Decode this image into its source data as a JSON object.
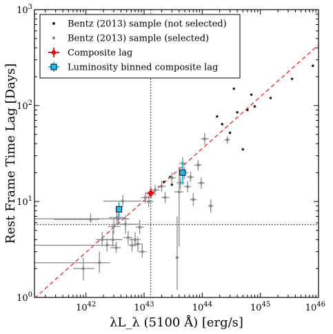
{
  "chart_data": {
    "type": "scatter",
    "xlabel": "λL_λ (5100 Å) [erg/s]",
    "ylabel": "Rest Frame Time Lag [Days]",
    "x_scale": "log",
    "y_scale": "log",
    "xlim": [
      1.3e+41,
      1e+46
    ],
    "ylim": [
      1,
      1000
    ],
    "x_tick_labels": [
      {
        "value": 1e+42,
        "base": "10",
        "exp": "42"
      },
      {
        "value": 1e+43,
        "base": "10",
        "exp": "43"
      },
      {
        "value": 1e+44,
        "base": "10",
        "exp": "44"
      },
      {
        "value": 1e+45,
        "base": "10",
        "exp": "45"
      },
      {
        "value": 1e+46,
        "base": "10",
        "exp": "46"
      }
    ],
    "y_tick_labels": [
      {
        "value": 1,
        "base": "10",
        "exp": "0"
      },
      {
        "value": 10,
        "base": "10",
        "exp": "1"
      },
      {
        "value": 100,
        "base": "10",
        "exp": "2"
      },
      {
        "value": 1000,
        "base": "10",
        "exp": "3"
      }
    ],
    "legend_position": "top-left",
    "colors": {
      "not_selected": "#222222",
      "selected": "#888888",
      "composite": "#dd1111",
      "binned": "#22bbee",
      "fit": "#ee2222"
    },
    "series": [
      {
        "name": "Bentz (2013) sample (not selected)",
        "marker": "dot",
        "points": [
          {
            "x": 8e+45,
            "y": 260
          },
          {
            "x": 3.5e+45,
            "y": 190
          },
          {
            "x": 1.5e+45,
            "y": 120
          },
          {
            "x": 7e+44,
            "y": 130
          },
          {
            "x": 8e+44,
            "y": 98
          },
          {
            "x": 6e+44,
            "y": 90
          },
          {
            "x": 4e+44,
            "y": 85
          },
          {
            "x": 3.5e+44,
            "y": 150
          },
          {
            "x": 1.8e+44,
            "y": 77
          },
          {
            "x": 2.2e+44,
            "y": 64
          },
          {
            "x": 3e+44,
            "y": 52
          },
          {
            "x": 5e+44,
            "y": 35
          },
          {
            "x": 2.8e+43,
            "y": 18
          },
          {
            "x": 2.2e+43,
            "y": 16
          },
          {
            "x": 3e+43,
            "y": 15
          }
        ]
      },
      {
        "name": "Bentz (2013) sample (selected)",
        "marker": "dot-errorbar",
        "points": [
          {
            "x": 1.2e+42,
            "y": 6.5,
            "x_lo": 2.8e+41,
            "x_hi": 1.7e+42,
            "y_lo": 6.0,
            "y_hi": 7.5
          },
          {
            "x": 9e+41,
            "y": 2.0,
            "x_lo": 6e+41,
            "x_hi": 1.4e+42,
            "y_lo": 1.5,
            "y_hi": 2.6
          },
          {
            "x": 1.7e+42,
            "y": 2.3,
            "x_lo": 1.3e+41,
            "x_hi": 2.6e+42,
            "y_lo": 1.8,
            "y_hi": 3.0
          },
          {
            "x": 1.9e+42,
            "y": 4.0,
            "x_lo": 1.5e+42,
            "x_hi": 2.4e+42,
            "y_lo": 3.4,
            "y_hi": 4.8
          },
          {
            "x": 2.3e+42,
            "y": 3.5,
            "x_lo": 1.3e+41,
            "x_hi": 3.4e+42,
            "y_lo": 3.0,
            "y_hi": 4.1
          },
          {
            "x": 2.9e+42,
            "y": 4.0,
            "x_lo": 2e+42,
            "x_hi": 4.2e+42,
            "y_lo": 3.4,
            "y_hi": 5.0
          },
          {
            "x": 3e+42,
            "y": 5.5,
            "x_lo": 2.4e+42,
            "x_hi": 3.9e+42,
            "y_lo": 4.6,
            "y_hi": 6.7
          },
          {
            "x": 3.4e+42,
            "y": 6.8,
            "x_lo": 2.5e+42,
            "x_hi": 4.6e+42,
            "y_lo": 5.8,
            "y_hi": 8.0
          },
          {
            "x": 3.6e+42,
            "y": 6.6,
            "x_lo": 1.3e+41,
            "x_hi": 5.6e+42,
            "y_lo": 5.9,
            "y_hi": 7.4
          },
          {
            "x": 3.3e+42,
            "y": 3.3,
            "x_lo": 2.6e+42,
            "x_hi": 4e+42,
            "y_lo": 2.9,
            "y_hi": 3.8
          },
          {
            "x": 4.3e+42,
            "y": 10.1,
            "x_lo": 2e+42,
            "x_hi": 9e+42,
            "y_lo": 8.8,
            "y_hi": 11.6
          },
          {
            "x": 4.8e+42,
            "y": 5.8,
            "x_lo": 3e+42,
            "x_hi": 8.2e+42,
            "y_lo": 4.6,
            "y_hi": 7.2
          },
          {
            "x": 5.3e+42,
            "y": 4.2,
            "x_lo": 4.4e+42,
            "x_hi": 6.3e+42,
            "y_lo": 3.6,
            "y_hi": 4.9
          },
          {
            "x": 6.2e+42,
            "y": 3.5,
            "x_lo": 5.3e+42,
            "x_hi": 7.3e+42,
            "y_lo": 3.0,
            "y_hi": 4.1
          },
          {
            "x": 7e+42,
            "y": 4.0,
            "x_lo": 5.6e+42,
            "x_hi": 8.7e+42,
            "y_lo": 3.4,
            "y_hi": 4.8
          },
          {
            "x": 7.8e+42,
            "y": 3.6,
            "x_lo": 6.7e+42,
            "x_hi": 9.3e+42,
            "y_lo": 3.0,
            "y_hi": 4.3
          },
          {
            "x": 8.4e+42,
            "y": 5.4,
            "x_lo": 7.2e+42,
            "x_hi": 9.9e+42,
            "y_lo": 4.6,
            "y_hi": 6.4
          },
          {
            "x": 9.3e+42,
            "y": 3.0,
            "x_lo": 8e+42,
            "x_hi": 1.1e+43,
            "y_lo": 2.6,
            "y_hi": 3.6
          },
          {
            "x": 1.05e+43,
            "y": 11.0,
            "x_lo": 8.9e+42,
            "x_hi": 1.25e+43,
            "y_lo": 9.6,
            "y_hi": 12.5
          },
          {
            "x": 1.2e+43,
            "y": 10.0,
            "x_lo": 1e+43,
            "x_hi": 1.45e+43,
            "y_lo": 8.7,
            "y_hi": 11.5
          },
          {
            "x": 1.55e+43,
            "y": 13.2,
            "x_lo": 1.3e+43,
            "x_hi": 1.85e+43,
            "y_lo": 11.5,
            "y_hi": 15.0
          },
          {
            "x": 2e+43,
            "y": 14.4,
            "x_lo": 1.7e+43,
            "x_hi": 2.35e+43,
            "y_lo": 12.6,
            "y_hi": 16.4
          },
          {
            "x": 2.3e+43,
            "y": 11.0,
            "x_lo": 2e+43,
            "x_hi": 2.7e+43,
            "y_lo": 9.6,
            "y_hi": 12.6
          },
          {
            "x": 3e+43,
            "y": 17.7,
            "x_lo": 2.6e+43,
            "x_hi": 3.5e+43,
            "y_lo": 15.6,
            "y_hi": 20.0
          },
          {
            "x": 3.7e+43,
            "y": 2.6,
            "x_lo": 3.5e+43,
            "x_hi": 3.9e+43,
            "y_lo": 1.2,
            "y_hi": 7.0
          },
          {
            "x": 4e+43,
            "y": 12.6,
            "x_lo": 3.3e+43,
            "x_hi": 4.8e+43,
            "y_lo": 3.4,
            "y_hi": 23
          },
          {
            "x": 4.2e+43,
            "y": 15.7,
            "x_lo": 3.6e+43,
            "x_hi": 4.9e+43,
            "y_lo": 13.5,
            "y_hi": 18.0
          },
          {
            "x": 4.6e+43,
            "y": 25,
            "x_lo": 4e+43,
            "x_hi": 5.3e+43,
            "y_lo": 21,
            "y_hi": 29
          },
          {
            "x": 4.9e+43,
            "y": 20,
            "x_lo": 4.2e+43,
            "x_hi": 5.7e+43,
            "y_lo": 17,
            "y_hi": 23
          },
          {
            "x": 5.6e+43,
            "y": 14.3,
            "x_lo": 4.9e+43,
            "x_hi": 6.4e+43,
            "y_lo": 12.5,
            "y_hi": 16.3
          },
          {
            "x": 6.3e+43,
            "y": 18.0,
            "x_lo": 5.5e+43,
            "x_hi": 7.2e+43,
            "y_lo": 16.0,
            "y_hi": 20.5
          },
          {
            "x": 7e+43,
            "y": 10.5,
            "x_lo": 6.1e+43,
            "x_hi": 8e+43,
            "y_lo": 9.0,
            "y_hi": 12.3
          },
          {
            "x": 8.5e+43,
            "y": 24,
            "x_lo": 7.3e+43,
            "x_hi": 9.8e+43,
            "y_lo": 21,
            "y_hi": 27
          },
          {
            "x": 9.6e+43,
            "y": 15.6,
            "x_lo": 8.3e+43,
            "x_hi": 1.1e+44,
            "y_lo": 13.5,
            "y_hi": 17.8
          },
          {
            "x": 1.1e+44,
            "y": 45,
            "x_lo": 9.5e+43,
            "x_hi": 1.3e+44,
            "y_lo": 39,
            "y_hi": 52
          },
          {
            "x": 1.4e+44,
            "y": 9.0,
            "x_lo": 1.25e+44,
            "x_hi": 1.55e+44,
            "y_lo": 7.7,
            "y_hi": 10.5
          },
          {
            "x": 2.7e+44,
            "y": 44,
            "x_lo": 2.4e+44,
            "x_hi": 3e+44,
            "y_lo": 40,
            "y_hi": 48
          }
        ]
      },
      {
        "name": "Composite lag",
        "marker": "diamond-errorbar",
        "points": [
          {
            "x": 1.3e+43,
            "y": 12.2,
            "x_lo": 1.1e+43,
            "x_hi": 1.5e+43,
            "y_lo": 10.8,
            "y_hi": 13.8
          }
        ]
      },
      {
        "name": "Luminosity binned composite lag",
        "marker": "square-errorbar",
        "points": [
          {
            "x": 3.7e+42,
            "y": 8.3,
            "x_lo": 3.5e+42,
            "x_hi": 3.9e+42,
            "y_lo": 6.9,
            "y_hi": 9.9
          },
          {
            "x": 4.6e+43,
            "y": 20,
            "x_lo": 4.3e+43,
            "x_hi": 4.9e+43,
            "y_lo": 15,
            "y_hi": 26
          }
        ]
      }
    ],
    "fit_line": {
      "style": "dashed",
      "x": [
        1.3e+41,
        1e+46
      ],
      "y": [
        0.98,
        430
      ]
    },
    "reference_lines": {
      "style": "dotted",
      "vertical_x": 1.3e+43,
      "horizontal_y": 5.75
    }
  }
}
